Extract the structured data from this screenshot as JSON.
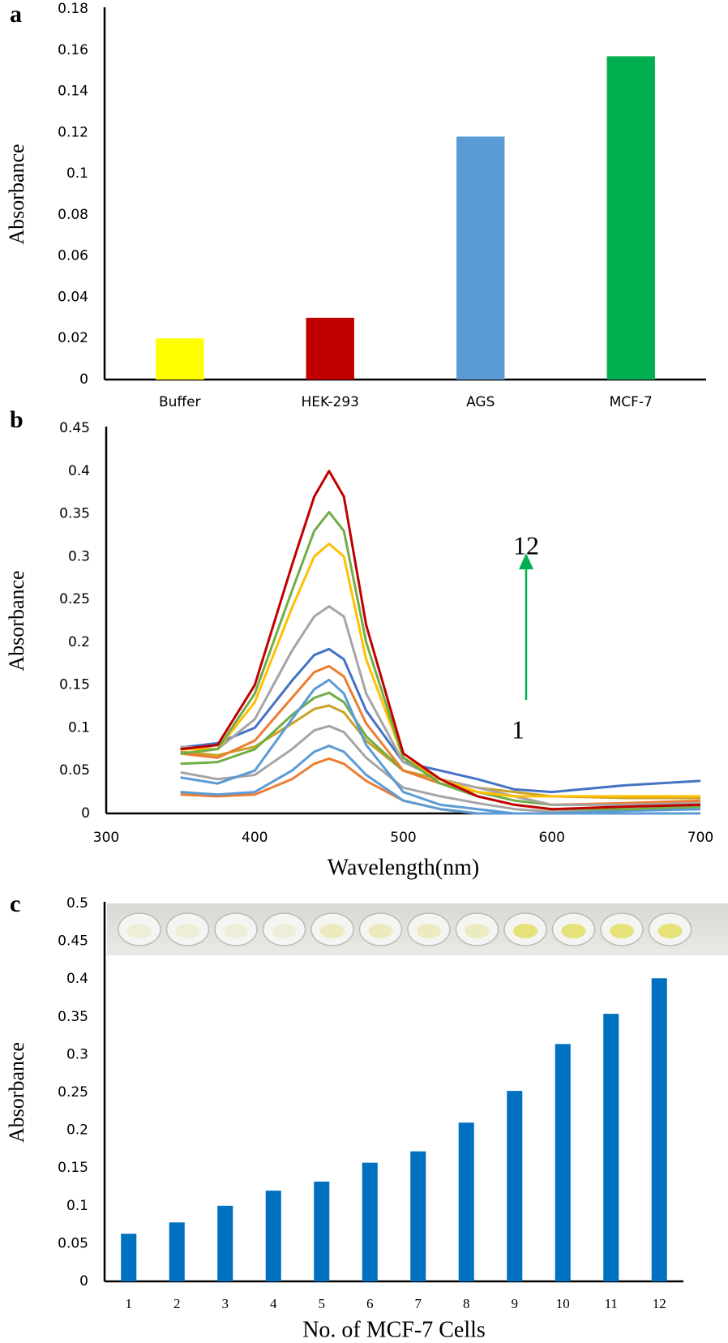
{
  "chart_data": [
    {
      "type": "bar",
      "panel": "a",
      "ylabel": "Absorbance",
      "categories": [
        "Buffer",
        "HEK-293",
        "AGS",
        "MCF-7"
      ],
      "values": [
        0.02,
        0.03,
        0.118,
        0.157
      ],
      "colors": [
        "#ffff00",
        "#c00000",
        "#5b9bd5",
        "#00b050"
      ],
      "ylim": [
        0,
        0.18
      ],
      "yticks": [
        0,
        0.02,
        0.04,
        0.06,
        0.08,
        0.1,
        0.12,
        0.14,
        0.16,
        0.18
      ]
    },
    {
      "type": "line",
      "panel": "b",
      "ylabel": "Absorbance",
      "xlabel": "Wavelength(nm)",
      "x": [
        350,
        375,
        400,
        425,
        440,
        450,
        460,
        475,
        500,
        525,
        550,
        575,
        600,
        650,
        700
      ],
      "series": [
        {
          "color": "#ed7d31",
          "values": [
            0.022,
            0.02,
            0.022,
            0.04,
            0.058,
            0.064,
            0.058,
            0.038,
            0.015,
            0.005,
            0,
            0,
            0,
            0,
            0
          ]
        },
        {
          "color": "#5b9bd5",
          "values": [
            0.025,
            0.022,
            0.025,
            0.05,
            0.072,
            0.079,
            0.072,
            0.045,
            0.015,
            0.005,
            0,
            0,
            0,
            0,
            0
          ]
        },
        {
          "color": "#a5a5a5",
          "values": [
            0.048,
            0.04,
            0.045,
            0.075,
            0.097,
            0.102,
            0.095,
            0.065,
            0.03,
            0.02,
            0.012,
            0.005,
            0.002,
            0.004,
            0.005
          ]
        },
        {
          "color": "#c9a227",
          "values": [
            0.072,
            0.068,
            0.078,
            0.105,
            0.122,
            0.126,
            0.118,
            0.085,
            0.05,
            0.04,
            0.03,
            0.025,
            0.02,
            0.018,
            0.018
          ]
        },
        {
          "color": "#70ad47",
          "values": [
            0.058,
            0.06,
            0.075,
            0.115,
            0.135,
            0.141,
            0.13,
            0.09,
            0.05,
            0.035,
            0.025,
            0.015,
            0.01,
            0.01,
            0.01
          ]
        },
        {
          "color": "#5b9bd5",
          "values": [
            0.042,
            0.035,
            0.05,
            0.11,
            0.145,
            0.156,
            0.14,
            0.08,
            0.025,
            0.01,
            0.005,
            0,
            0,
            0.003,
            0.005
          ]
        },
        {
          "color": "#ed7d31",
          "values": [
            0.07,
            0.065,
            0.085,
            0.135,
            0.165,
            0.172,
            0.16,
            0.105,
            0.05,
            0.035,
            0.025,
            0.02,
            0.01,
            0.012,
            0.015
          ]
        },
        {
          "color": "#4472c4",
          "values": [
            0.077,
            0.082,
            0.1,
            0.155,
            0.185,
            0.192,
            0.18,
            0.12,
            0.06,
            0.05,
            0.04,
            0.028,
            0.025,
            0.033,
            0.038
          ]
        },
        {
          "color": "#a5a5a5",
          "values": [
            0.078,
            0.075,
            0.11,
            0.19,
            0.23,
            0.242,
            0.23,
            0.14,
            0.06,
            0.04,
            0.03,
            0.02,
            0.01,
            0.01,
            0.012
          ]
        },
        {
          "color": "#ffc000",
          "values": [
            0.075,
            0.075,
            0.13,
            0.24,
            0.3,
            0.315,
            0.3,
            0.18,
            0.065,
            0.04,
            0.025,
            0.02,
            0.02,
            0.02,
            0.02
          ]
        },
        {
          "color": "#70ad47",
          "values": [
            0.07,
            0.075,
            0.14,
            0.26,
            0.33,
            0.352,
            0.33,
            0.2,
            0.065,
            0.035,
            0.02,
            0.01,
            0.005,
            0.005,
            0.008
          ]
        },
        {
          "color": "#c00000",
          "values": [
            0.075,
            0.08,
            0.15,
            0.29,
            0.37,
            0.4,
            0.37,
            0.22,
            0.07,
            0.04,
            0.02,
            0.01,
            0.005,
            0.008,
            0.01
          ]
        }
      ],
      "annotations": [
        "12",
        "1"
      ],
      "xlim": [
        300,
        700
      ],
      "xticks": [
        300,
        400,
        500,
        600,
        700
      ],
      "ylim": [
        0,
        0.45
      ],
      "yticks": [
        0,
        0.05,
        0.1,
        0.15,
        0.2,
        0.25,
        0.3,
        0.35,
        0.4,
        0.45
      ]
    },
    {
      "type": "bar",
      "panel": "c",
      "ylabel": "Absorbance",
      "xlabel": "No. of MCF-7 Cells",
      "categories": [
        "1",
        "2",
        "3",
        "4",
        "5",
        "6",
        "7",
        "8",
        "9",
        "10",
        "11",
        "12"
      ],
      "values": [
        0.063,
        0.078,
        0.1,
        0.12,
        0.132,
        0.157,
        0.172,
        0.21,
        0.252,
        0.314,
        0.354,
        0.401
      ],
      "color": "#0070c0",
      "ylim": [
        0,
        0.5
      ],
      "yticks": [
        0,
        0.05,
        0.1,
        0.15,
        0.2,
        0.25,
        0.3,
        0.35,
        0.4,
        0.45,
        0.5
      ]
    }
  ]
}
